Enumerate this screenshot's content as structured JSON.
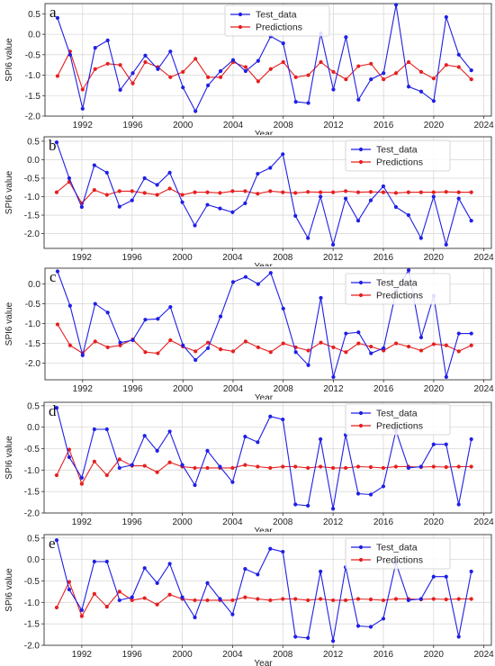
{
  "figure": {
    "panels": [
      {
        "letter": "a",
        "legend": [
          "Test_data",
          "Predictions"
        ],
        "xlabel": "Year",
        "ylabel": "SPI6 value"
      },
      {
        "letter": "b",
        "legend": [
          "Test_data",
          "Predictions"
        ],
        "xlabel": "Year",
        "ylabel": "SPI6 value"
      },
      {
        "letter": "c",
        "legend": [
          "Test_data",
          "Predictions"
        ],
        "xlabel": "Year",
        "ylabel": "SPI6 value"
      },
      {
        "letter": "d",
        "legend": [
          "Test_data",
          "Predictions"
        ],
        "xlabel": "Year",
        "ylabel": "SPI6 value"
      },
      {
        "letter": "e",
        "legend": [
          "Test_data",
          "Predictions"
        ],
        "xlabel": "Year",
        "ylabel": "SPI6 value"
      }
    ]
  },
  "colors": {
    "test": "#1f1fe6",
    "pred": "#e61f1f",
    "grid": "#d9d9d9",
    "frame": "#333333"
  },
  "chart_data": [
    {
      "type": "line",
      "panel": "a",
      "x": [
        1990,
        1991,
        1992,
        1993,
        1994,
        1995,
        1996,
        1997,
        1998,
        1999,
        2000,
        2001,
        2002,
        2003,
        2004,
        2005,
        2006,
        2007,
        2008,
        2009,
        2010,
        2011,
        2012,
        2013,
        2014,
        2015,
        2016,
        2017,
        2018,
        2019,
        2020,
        2021,
        2022,
        2023
      ],
      "series": [
        {
          "name": "Test_data",
          "color": "#1f1fe6",
          "values": [
            0.4,
            -0.5,
            -1.82,
            -0.33,
            -0.15,
            -1.36,
            -0.95,
            -0.52,
            -0.85,
            -0.42,
            -1.3,
            -1.88,
            -1.25,
            -0.9,
            -0.63,
            -0.9,
            -0.65,
            -0.05,
            -0.22,
            -1.65,
            -1.68,
            0.02,
            -1.35,
            -0.07,
            -1.6,
            -1.1,
            -0.95,
            0.72,
            -1.28,
            -1.4,
            -1.63,
            0.42,
            -0.5,
            -0.88
          ]
        },
        {
          "name": "Predictions",
          "color": "#e61f1f",
          "values": [
            -1.02,
            -0.42,
            -1.35,
            -0.85,
            -0.72,
            -0.75,
            -1.2,
            -0.68,
            -0.8,
            -1.05,
            -0.92,
            -0.6,
            -1.05,
            -1.05,
            -0.68,
            -0.8,
            -1.15,
            -0.85,
            -0.68,
            -1.05,
            -1.0,
            -0.68,
            -0.92,
            -1.1,
            -0.78,
            -0.72,
            -1.1,
            -0.95,
            -0.68,
            -0.92,
            -1.08,
            -0.75,
            -0.8,
            -1.1
          ]
        }
      ],
      "xlabel": "Year",
      "ylabel": "SPI6 value",
      "xticks": [
        1992,
        1996,
        2000,
        2004,
        2008,
        2012,
        2016,
        2020,
        2024
      ],
      "yticks": [
        -2.0,
        -1.5,
        -1.0,
        -0.5,
        0.0,
        0.5
      ],
      "ylim": [
        -2.0,
        0.75
      ],
      "xlim": [
        1989,
        2024.6
      ],
      "grid": true,
      "legend": "top-center"
    },
    {
      "type": "line",
      "panel": "b",
      "x": [
        1990,
        1991,
        1992,
        1993,
        1994,
        1995,
        1996,
        1997,
        1998,
        1999,
        2000,
        2001,
        2002,
        2003,
        2004,
        2005,
        2006,
        2007,
        2008,
        2009,
        2010,
        2011,
        2012,
        2013,
        2014,
        2015,
        2016,
        2017,
        2018,
        2019,
        2020,
        2021,
        2022,
        2023
      ],
      "series": [
        {
          "name": "Test_data",
          "color": "#1f1fe6",
          "values": [
            0.47,
            -0.5,
            -1.28,
            -0.15,
            -0.35,
            -1.27,
            -1.1,
            -0.5,
            -0.68,
            -0.35,
            -1.15,
            -1.78,
            -1.22,
            -1.32,
            -1.42,
            -1.18,
            -0.38,
            -0.22,
            0.15,
            -1.52,
            -2.12,
            -1.0,
            -2.3,
            -1.05,
            -1.65,
            -1.1,
            -0.72,
            -1.28,
            -1.5,
            -2.12,
            -1.0,
            -2.3,
            -1.05,
            -1.65
          ]
        },
        {
          "name": "Predictions",
          "color": "#e61f1f",
          "values": [
            -0.88,
            -0.6,
            -1.18,
            -0.82,
            -0.95,
            -0.85,
            -0.85,
            -0.9,
            -0.95,
            -0.78,
            -0.95,
            -0.88,
            -0.88,
            -0.9,
            -0.85,
            -0.85,
            -0.92,
            -0.85,
            -0.88,
            -0.9,
            -0.87,
            -0.88,
            -0.88,
            -0.85,
            -0.88,
            -0.87,
            -0.88,
            -0.9,
            -0.88,
            -0.88,
            -0.88,
            -0.87,
            -0.88,
            -0.88
          ]
        }
      ],
      "xlabel": "Year",
      "ylabel": "SPI6 value",
      "xticks": [
        1992,
        1996,
        2000,
        2004,
        2008,
        2012,
        2016,
        2020,
        2024
      ],
      "yticks": [
        -2.0,
        -1.5,
        -1.0,
        -0.5,
        0.0,
        0.5
      ],
      "ylim": [
        -2.4,
        0.62
      ],
      "xlim": [
        1989,
        2024.6
      ],
      "grid": true,
      "legend": "top-right"
    },
    {
      "type": "line",
      "panel": "c",
      "x": [
        1990,
        1991,
        1992,
        1993,
        1994,
        1995,
        1996,
        1997,
        1998,
        1999,
        2000,
        2001,
        2002,
        2003,
        2004,
        2005,
        2006,
        2007,
        2008,
        2009,
        2010,
        2011,
        2012,
        2013,
        2014,
        2015,
        2016,
        2017,
        2018,
        2019,
        2020,
        2021,
        2022,
        2023
      ],
      "series": [
        {
          "name": "Test_data",
          "color": "#1f1fe6",
          "values": [
            0.32,
            -0.55,
            -1.8,
            -0.5,
            -0.72,
            -1.48,
            -1.42,
            -0.9,
            -0.88,
            -0.58,
            -1.55,
            -1.92,
            -1.62,
            -0.82,
            0.05,
            0.18,
            0.0,
            0.28,
            -0.62,
            -1.72,
            -2.05,
            -0.35,
            -2.35,
            -1.25,
            -1.22,
            -1.75,
            -1.62,
            -0.18,
            0.35,
            -1.35,
            -0.3,
            -2.35,
            -1.25,
            -1.25
          ]
        },
        {
          "name": "Predictions",
          "color": "#e61f1f",
          "values": [
            -1.02,
            -1.55,
            -1.75,
            -1.45,
            -1.6,
            -1.55,
            -1.4,
            -1.72,
            -1.75,
            -1.42,
            -1.58,
            -1.7,
            -1.48,
            -1.65,
            -1.7,
            -1.45,
            -1.6,
            -1.72,
            -1.5,
            -1.6,
            -1.68,
            -1.48,
            -1.6,
            -1.72,
            -1.5,
            -1.58,
            -1.68,
            -1.5,
            -1.58,
            -1.68,
            -1.52,
            -1.55,
            -1.7,
            -1.55
          ]
        }
      ],
      "xlabel": "Year",
      "ylabel": "SPI6 value",
      "xticks": [
        1992,
        1996,
        2000,
        2004,
        2008,
        2012,
        2016,
        2020,
        2024
      ],
      "yticks": [
        -2.0,
        -1.5,
        -1.0,
        -0.5,
        0.0
      ],
      "ylim": [
        -2.42,
        0.4
      ],
      "xlim": [
        1989,
        2024.6
      ],
      "grid": true,
      "legend": "top-right"
    },
    {
      "type": "line",
      "panel": "d",
      "x": [
        1990,
        1991,
        1992,
        1993,
        1994,
        1995,
        1996,
        1997,
        1998,
        1999,
        2000,
        2001,
        2002,
        2003,
        2004,
        2005,
        2006,
        2007,
        2008,
        2009,
        2010,
        2011,
        2012,
        2013,
        2014,
        2015,
        2016,
        2017,
        2018,
        2019,
        2020,
        2021,
        2022,
        2023
      ],
      "series": [
        {
          "name": "Test_data",
          "color": "#1f1fe6",
          "values": [
            0.45,
            -0.7,
            -1.18,
            -0.05,
            -0.05,
            -0.95,
            -0.88,
            -0.2,
            -0.55,
            -0.1,
            -0.88,
            -1.35,
            -0.55,
            -0.92,
            -1.28,
            -0.22,
            -0.35,
            0.25,
            0.18,
            -1.8,
            -1.83,
            -0.28,
            -1.9,
            -0.18,
            -1.55,
            -1.57,
            -1.38,
            -0.08,
            -0.95,
            -0.92,
            -0.4,
            -0.4,
            -1.8,
            -0.28
          ]
        },
        {
          "name": "Predictions",
          "color": "#e61f1f",
          "values": [
            -1.12,
            -0.52,
            -1.32,
            -0.8,
            -1.12,
            -0.75,
            -0.9,
            -0.9,
            -1.05,
            -0.82,
            -0.92,
            -0.95,
            -0.95,
            -0.95,
            -0.95,
            -0.88,
            -0.92,
            -0.95,
            -0.92,
            -0.92,
            -0.95,
            -0.92,
            -0.95,
            -0.95,
            -0.92,
            -0.93,
            -0.95,
            -0.92,
            -0.92,
            -0.93,
            -0.92,
            -0.93,
            -0.92,
            -0.92
          ]
        }
      ],
      "xlabel": "Year",
      "ylabel": "SPI6 value",
      "xticks": [
        1992,
        1996,
        2000,
        2004,
        2008,
        2012,
        2016,
        2020,
        2024
      ],
      "yticks": [
        -2.0,
        -1.5,
        -1.0,
        -0.5,
        0.0,
        0.5
      ],
      "ylim": [
        -2.0,
        0.58
      ],
      "xlim": [
        1989,
        2024.6
      ],
      "grid": true,
      "legend": "top-right"
    },
    {
      "type": "line",
      "panel": "e",
      "x": [
        1990,
        1991,
        1992,
        1993,
        1994,
        1995,
        1996,
        1997,
        1998,
        1999,
        2000,
        2001,
        2002,
        2003,
        2004,
        2005,
        2006,
        2007,
        2008,
        2009,
        2010,
        2011,
        2012,
        2013,
        2014,
        2015,
        2016,
        2017,
        2018,
        2019,
        2020,
        2021,
        2022,
        2023
      ],
      "series": [
        {
          "name": "Test_data",
          "color": "#1f1fe6",
          "values": [
            0.45,
            -0.7,
            -1.18,
            -0.05,
            -0.05,
            -0.95,
            -0.88,
            -0.2,
            -0.55,
            -0.1,
            -0.88,
            -1.35,
            -0.55,
            -0.92,
            -1.28,
            -0.22,
            -0.35,
            0.25,
            0.18,
            -1.8,
            -1.83,
            -0.28,
            -1.9,
            -0.18,
            -1.55,
            -1.57,
            -1.38,
            -0.08,
            -0.95,
            -0.92,
            -0.4,
            -0.4,
            -1.8,
            -0.28
          ]
        },
        {
          "name": "Predictions",
          "color": "#e61f1f",
          "values": [
            -1.12,
            -0.52,
            -1.32,
            -0.8,
            -1.1,
            -0.75,
            -0.95,
            -0.9,
            -1.05,
            -0.82,
            -0.92,
            -0.95,
            -0.95,
            -0.95,
            -0.95,
            -0.88,
            -0.92,
            -0.95,
            -0.92,
            -0.92,
            -0.95,
            -0.92,
            -0.95,
            -0.95,
            -0.92,
            -0.93,
            -0.95,
            -0.92,
            -0.92,
            -0.93,
            -0.92,
            -0.93,
            -0.92,
            -0.92
          ]
        }
      ],
      "xlabel": "Year",
      "ylabel": "SPI6 value",
      "xticks": [
        1992,
        1996,
        2000,
        2004,
        2008,
        2012,
        2016,
        2020,
        2024
      ],
      "yticks": [
        -2.0,
        -1.5,
        -1.0,
        -0.5,
        0.0,
        0.5
      ],
      "ylim": [
        -2.0,
        0.58
      ],
      "xlim": [
        1989,
        2024.6
      ],
      "grid": true,
      "legend": "top-right"
    }
  ]
}
